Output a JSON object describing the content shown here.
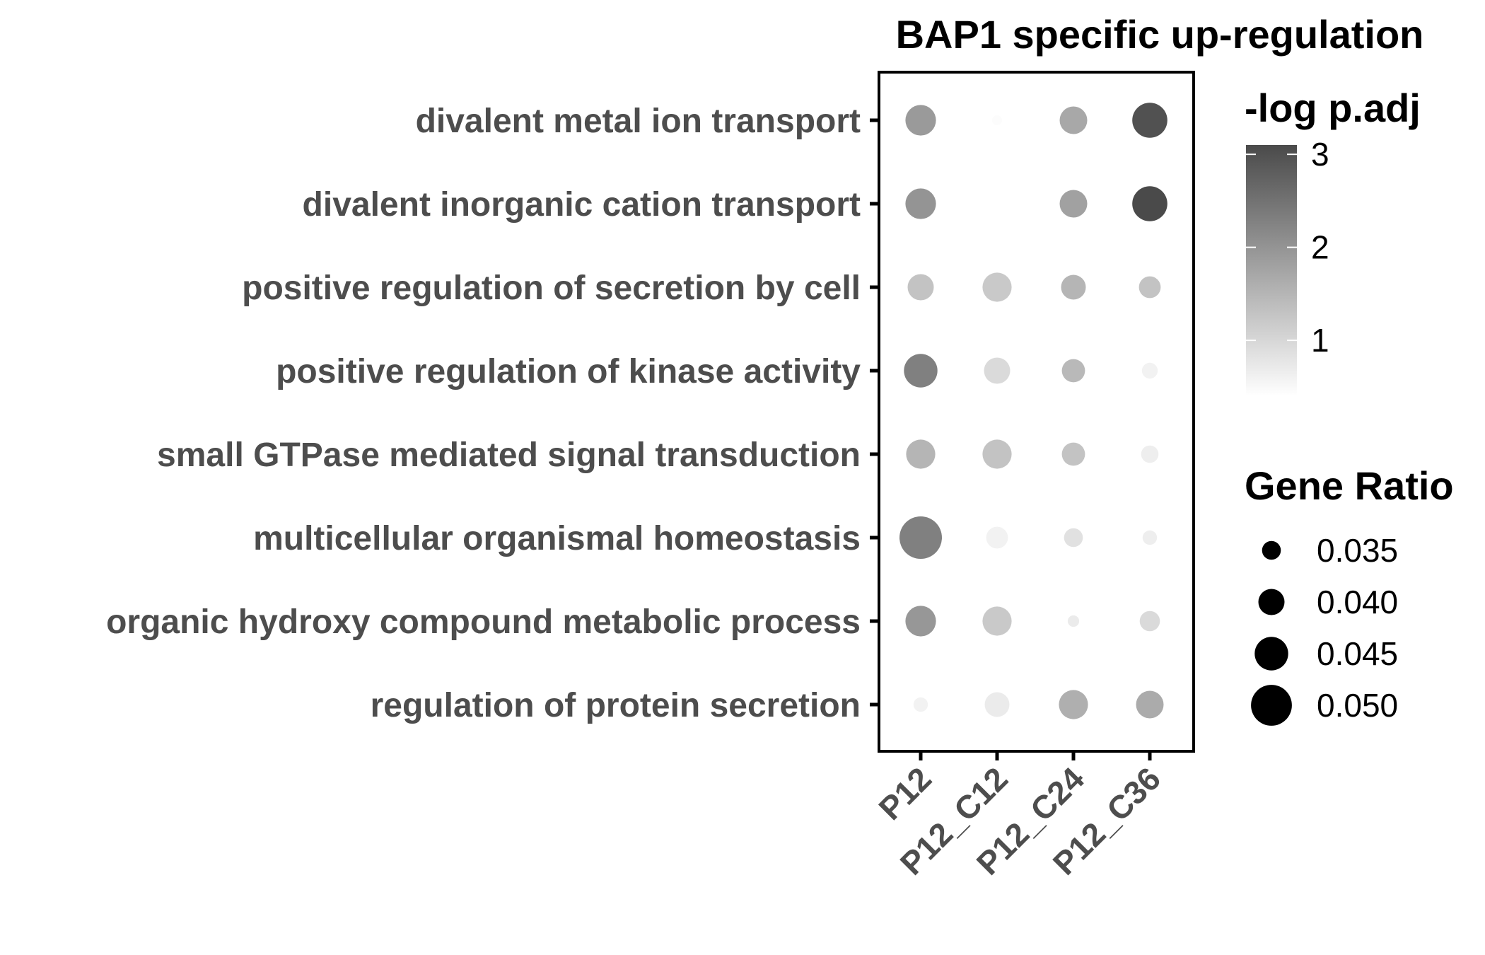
{
  "chart_data": {
    "type": "scatter",
    "title": "BAP1 specific up-regulation",
    "xlabel": "",
    "ylabel": "",
    "categories_x": [
      "P12",
      "P12_C12",
      "P12_C24",
      "P12_C36"
    ],
    "categories_y": [
      "divalent metal ion transport",
      "divalent inorganic cation transport",
      "positive regulation of secretion by cell",
      "positive regulation of kinase activity",
      "small GTPase mediated signal transduction",
      "multicellular organismal homeostasis",
      "organic hydroxy compound metabolic process",
      "regulation of protein secretion"
    ],
    "color_legend": {
      "title": "-log p.adj",
      "ticks": [
        "1",
        "2",
        "3"
      ],
      "range": [
        0.4,
        3.1
      ],
      "low_color": "#ffffff",
      "high_color": "#4a4a4a"
    },
    "size_legend": {
      "title": "Gene Ratio",
      "ticks": [
        "0.035",
        "0.040",
        "0.045",
        "0.050"
      ],
      "range": [
        0.028,
        0.052
      ]
    },
    "points": [
      {
        "x": "P12",
        "y": "divalent metal ion transport",
        "gene_ratio": 0.043,
        "neglog_padj": 1.9
      },
      {
        "x": "P12_C12",
        "y": "divalent metal ion transport",
        "gene_ratio": 0.029,
        "neglog_padj": 0.45
      },
      {
        "x": "P12_C24",
        "y": "divalent metal ion transport",
        "gene_ratio": 0.041,
        "neglog_padj": 1.7
      },
      {
        "x": "P12_C36",
        "y": "divalent metal ion transport",
        "gene_ratio": 0.046,
        "neglog_padj": 3.0
      },
      {
        "x": "P12",
        "y": "divalent inorganic cation transport",
        "gene_ratio": 0.043,
        "neglog_padj": 2.0
      },
      {
        "x": "P12_C24",
        "y": "divalent inorganic cation transport",
        "gene_ratio": 0.041,
        "neglog_padj": 1.8
      },
      {
        "x": "P12_C36",
        "y": "divalent inorganic cation transport",
        "gene_ratio": 0.046,
        "neglog_padj": 3.1
      },
      {
        "x": "P12",
        "y": "positive regulation of secretion by cell",
        "gene_ratio": 0.04,
        "neglog_padj": 1.3
      },
      {
        "x": "P12_C12",
        "y": "positive regulation of secretion by cell",
        "gene_ratio": 0.042,
        "neglog_padj": 1.2
      },
      {
        "x": "P12_C24",
        "y": "positive regulation of secretion by cell",
        "gene_ratio": 0.039,
        "neglog_padj": 1.5
      },
      {
        "x": "P12_C36",
        "y": "positive regulation of secretion by cell",
        "gene_ratio": 0.037,
        "neglog_padj": 1.3
      },
      {
        "x": "P12",
        "y": "positive regulation of kinase activity",
        "gene_ratio": 0.045,
        "neglog_padj": 2.3
      },
      {
        "x": "P12_C12",
        "y": "positive regulation of kinase activity",
        "gene_ratio": 0.04,
        "neglog_padj": 0.95
      },
      {
        "x": "P12_C24",
        "y": "positive regulation of kinase activity",
        "gene_ratio": 0.038,
        "neglog_padj": 1.45
      },
      {
        "x": "P12_C36",
        "y": "positive regulation of kinase activity",
        "gene_ratio": 0.033,
        "neglog_padj": 0.6
      },
      {
        "x": "P12",
        "y": "small GTPase mediated signal transduction",
        "gene_ratio": 0.042,
        "neglog_padj": 1.5
      },
      {
        "x": "P12_C12",
        "y": "small GTPase mediated signal transduction",
        "gene_ratio": 0.042,
        "neglog_padj": 1.3
      },
      {
        "x": "P12_C24",
        "y": "small GTPase mediated signal transduction",
        "gene_ratio": 0.038,
        "neglog_padj": 1.3
      },
      {
        "x": "P12_C36",
        "y": "small GTPase mediated signal transduction",
        "gene_ratio": 0.034,
        "neglog_padj": 0.65
      },
      {
        "x": "P12",
        "y": "multicellular organismal homeostasis",
        "gene_ratio": 0.051,
        "neglog_padj": 2.3
      },
      {
        "x": "P12_C12",
        "y": "multicellular organismal homeostasis",
        "gene_ratio": 0.037,
        "neglog_padj": 0.6
      },
      {
        "x": "P12_C24",
        "y": "multicellular organismal homeostasis",
        "gene_ratio": 0.035,
        "neglog_padj": 0.85
      },
      {
        "x": "P12_C36",
        "y": "multicellular organismal homeostasis",
        "gene_ratio": 0.032,
        "neglog_padj": 0.65
      },
      {
        "x": "P12",
        "y": "organic hydroxy compound metabolic process",
        "gene_ratio": 0.043,
        "neglog_padj": 1.95
      },
      {
        "x": "P12_C12",
        "y": "organic hydroxy compound metabolic process",
        "gene_ratio": 0.042,
        "neglog_padj": 1.2
      },
      {
        "x": "P12_C24",
        "y": "organic hydroxy compound metabolic process",
        "gene_ratio": 0.03,
        "neglog_padj": 0.7
      },
      {
        "x": "P12_C36",
        "y": "organic hydroxy compound metabolic process",
        "gene_ratio": 0.036,
        "neglog_padj": 0.95
      },
      {
        "x": "P12",
        "y": "regulation of protein secretion",
        "gene_ratio": 0.032,
        "neglog_padj": 0.6
      },
      {
        "x": "P12_C12",
        "y": "regulation of protein secretion",
        "gene_ratio": 0.039,
        "neglog_padj": 0.7
      },
      {
        "x": "P12_C24",
        "y": "regulation of protein secretion",
        "gene_ratio": 0.042,
        "neglog_padj": 1.6
      },
      {
        "x": "P12_C36",
        "y": "regulation of protein secretion",
        "gene_ratio": 0.041,
        "neglog_padj": 1.65
      }
    ],
    "grid": false,
    "legend_position": "right"
  }
}
